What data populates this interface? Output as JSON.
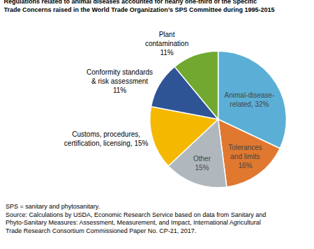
{
  "chart_data": {
    "type": "pie",
    "title": "Regulations related to animal diseases accounted for nearly one-third of the Specific\nTrade Concerns raised in the World Trade Organization’s SPS Committee during 1995-2015",
    "values": [
      32,
      16,
      15,
      15,
      11,
      11
    ],
    "value_labels": [
      "Animal-disease-\nrelated, 32%",
      "Tolerances\nand limits\n16%",
      "Other\n15%",
      "Customs, procedures,\ncertification, licensing, 15%",
      "Conformity standards\n& risk assessment\n11%",
      "Plant\ncontamination\n11%"
    ],
    "colors": [
      "#5bafd6",
      "#e07830",
      "#b0b8be",
      "#f5b800",
      "#2f5496",
      "#70a830"
    ],
    "data_labels": true,
    "annotations": [
      "SPS = sanitary and phytosanitary.",
      "Source: Calculations by USDA, Economic Research Service based on data from Sanitary and",
      "Phyto-Sanitary Measures: Assessment, Measurement, and Impact, International Agricultural",
      "Trade Research Consortium Commissioned Paper No. CP-21, 2017."
    ]
  }
}
